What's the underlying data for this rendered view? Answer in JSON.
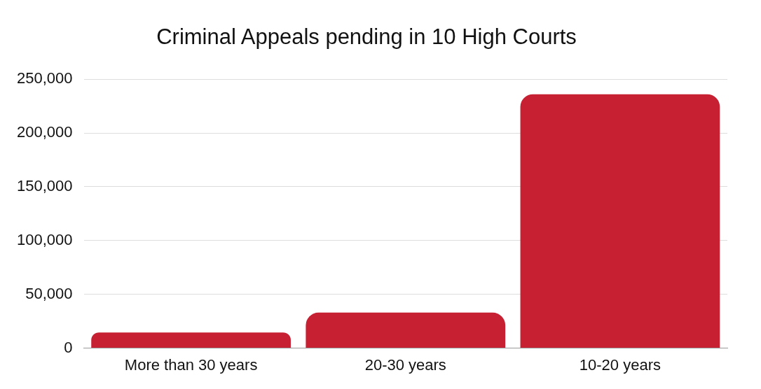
{
  "chart_data": {
    "type": "bar",
    "title": "Criminal Appeals pending in 10 High Courts",
    "categories": [
      "More than 30 years",
      "20-30 years",
      "10-20 years"
    ],
    "values": [
      14600,
      33000,
      236000
    ],
    "color": "#c62032",
    "ylim": [
      0,
      250000
    ],
    "yticks": [
      0,
      {
        "value": 50000,
        "label": "50,000"
      },
      {
        "value": 100000,
        "label": "100,000"
      },
      {
        "value": 150000,
        "label": "150,000"
      },
      {
        "value": 200000,
        "label": "200,000"
      },
      {
        "value": 250000,
        "label": "250,000"
      }
    ],
    "grid": "y"
  }
}
